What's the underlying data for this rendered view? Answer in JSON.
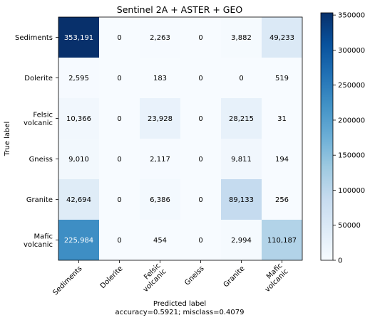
{
  "chart_data": {
    "type": "heatmap",
    "title": "Sentinel 2A + ASTER + GEO",
    "ylabel": "True label",
    "xlabel": "Predicted label",
    "xlabel_sub": "accuracy=0.5921; misclass=0.4079",
    "row_labels": [
      [
        "Sediments"
      ],
      [
        "Dolerite"
      ],
      [
        "Felsic",
        "volcanic"
      ],
      [
        "Gneiss"
      ],
      [
        "Granite"
      ],
      [
        "Mafic",
        "volcanic"
      ]
    ],
    "col_labels": [
      [
        "Sediments"
      ],
      [
        "Dolerite"
      ],
      [
        "Felsic",
        "volcanic"
      ],
      [
        "Gneiss"
      ],
      [
        "Granite"
      ],
      [
        "Mafic",
        "volcanic"
      ]
    ],
    "values": [
      [
        353191,
        0,
        2263,
        0,
        3882,
        49233
      ],
      [
        2595,
        0,
        183,
        0,
        0,
        519
      ],
      [
        10366,
        0,
        23928,
        0,
        28215,
        31
      ],
      [
        9010,
        0,
        2117,
        0,
        9811,
        194
      ],
      [
        42694,
        0,
        6386,
        0,
        89133,
        256
      ],
      [
        225984,
        0,
        454,
        0,
        2994,
        110187
      ]
    ],
    "cell_text": [
      [
        "353,191",
        "0",
        "2,263",
        "0",
        "3,882",
        "49,233"
      ],
      [
        "2,595",
        "0",
        "183",
        "0",
        "0",
        "519"
      ],
      [
        "10,366",
        "0",
        "23,928",
        "0",
        "28,215",
        "31"
      ],
      [
        "9,010",
        "0",
        "2,117",
        "0",
        "9,811",
        "194"
      ],
      [
        "42,694",
        "0",
        "6,386",
        "0",
        "89,133",
        "256"
      ],
      [
        "225,984",
        "0",
        "454",
        "0",
        "2,994",
        "110,187"
      ]
    ],
    "colormap": "Blues",
    "vmin": 0,
    "vmax": 353191,
    "colorbar_ticks": [
      0,
      50000,
      100000,
      150000,
      200000,
      250000,
      300000,
      350000
    ],
    "colorbar_tick_labels": [
      "0",
      "50000",
      "100000",
      "150000",
      "200000",
      "250000",
      "300000",
      "350000"
    ],
    "text_threshold": 176595
  }
}
